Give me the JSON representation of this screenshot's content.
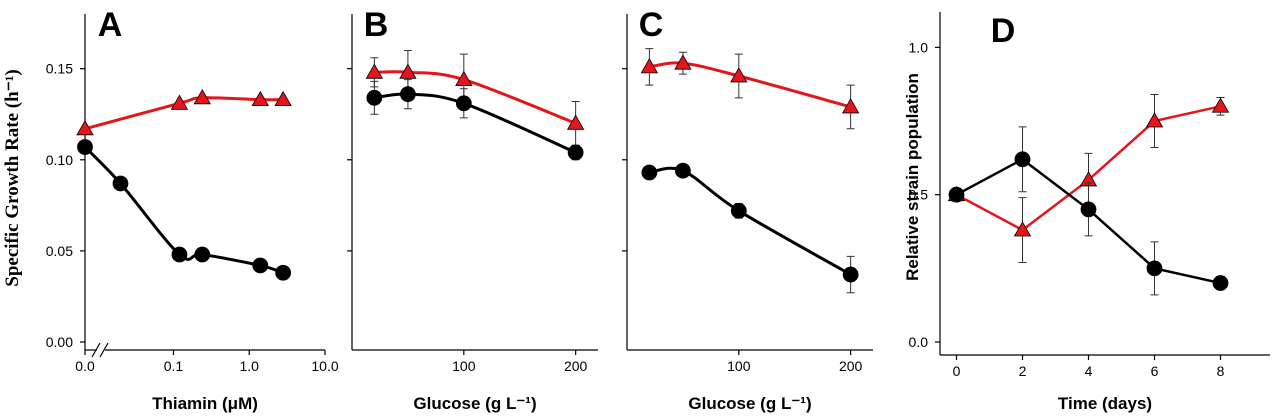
{
  "chart_data": [
    {
      "type": "scatter",
      "panel_label": "A",
      "ylabel": "Specific Growth Rate (h⁻¹)",
      "xlabel": "Thiamin (μM)",
      "xscale": "log",
      "axis_break": true,
      "fit_curve": true,
      "show_ytick_labels": true,
      "xlim": [
        0.0068,
        10
      ],
      "ylim": [
        0,
        0.18
      ],
      "xticks": [
        {
          "value": 0,
          "label": "0.0"
        },
        {
          "value": 0.1,
          "label": "0.1"
        },
        {
          "value": 1,
          "label": "1.0"
        },
        {
          "value": 10,
          "label": "10.0"
        }
      ],
      "yticks": [
        {
          "value": 0,
          "label": "0.00"
        },
        {
          "value": 0.05,
          "label": "0.05"
        },
        {
          "value": 0.1,
          "label": "0.10"
        },
        {
          "value": 0.15,
          "label": "0.15"
        }
      ],
      "series": [
        {
          "color": "#e3161c",
          "marker": "triangle",
          "x": [
            0,
            0.12,
            0.24,
            1.4,
            2.8
          ],
          "values": [
            0.117,
            0.131,
            0.134,
            0.133,
            0.133
          ]
        },
        {
          "color": "#000000",
          "marker": "circle",
          "x": [
            0,
            0.02,
            0.12,
            0.24,
            1.4,
            2.8
          ],
          "values": [
            0.107,
            0.087,
            0.048,
            0.048,
            0.042,
            0.038
          ]
        }
      ]
    },
    {
      "type": "scatter",
      "panel_label": "B",
      "xlabel": "Glucose (g L⁻¹)",
      "fit_curve": true,
      "show_ytick_labels": false,
      "xlim": [
        0,
        220
      ],
      "ylim": [
        0,
        0.18
      ],
      "xticks": [
        100,
        200
      ],
      "yticks": [
        0.05,
        0.1,
        0.15
      ],
      "x": [
        20,
        50,
        100,
        200
      ],
      "series": [
        {
          "color": "#e3161c",
          "marker": "triangle",
          "values": [
            0.148,
            0.148,
            0.144,
            0.12
          ],
          "errors": [
            0.008,
            0.012,
            0.014,
            0.012
          ]
        },
        {
          "color": "#000000",
          "marker": "circle",
          "values": [
            0.134,
            0.136,
            0.131,
            0.104
          ],
          "errors": [
            0.009,
            0.008,
            0.008,
            0.004
          ]
        }
      ]
    },
    {
      "type": "scatter",
      "panel_label": "C",
      "xlabel": "Glucose (g L⁻¹)",
      "fit_curve": true,
      "show_ytick_labels": false,
      "xlim": [
        0,
        220
      ],
      "ylim": [
        0,
        0.18
      ],
      "xticks": [
        100,
        200
      ],
      "yticks": [
        0.05,
        0.1,
        0.15
      ],
      "x": [
        20,
        50,
        100,
        200
      ],
      "series": [
        {
          "color": "#e3161c",
          "marker": "triangle",
          "values": [
            0.151,
            0.153,
            0.146,
            0.129
          ],
          "errors": [
            0.01,
            0.006,
            0.012,
            0.012
          ]
        },
        {
          "color": "#000000",
          "marker": "circle",
          "values": [
            0.093,
            0.094,
            0.072,
            0.037
          ],
          "errors": [
            0.002,
            0.003,
            0.004,
            0.01
          ]
        }
      ]
    },
    {
      "type": "line",
      "panel_label": "D",
      "ylabel": "Relative strain population",
      "xlabel": "Time (days)",
      "show_ytick_labels": true,
      "xlim": [
        -0.5,
        9.5
      ],
      "ylim": [
        0,
        1.12
      ],
      "xticks": [
        0,
        2,
        4,
        6,
        8
      ],
      "yticks": [
        {
          "value": 0,
          "label": "0.0"
        },
        {
          "value": 0.5,
          "label": "0.5"
        },
        {
          "value": 1,
          "label": "1.0"
        }
      ],
      "x": [
        0,
        2,
        4,
        6,
        8
      ],
      "series": [
        {
          "color": "#e3161c",
          "marker": "triangle",
          "values": [
            0.5,
            0.38,
            0.55,
            0.75,
            0.8
          ],
          "errors": [
            0,
            0.11,
            0.09,
            0.09,
            0.03
          ]
        },
        {
          "color": "#000000",
          "marker": "circle",
          "values": [
            0.5,
            0.62,
            0.45,
            0.25,
            0.2
          ],
          "errors": [
            0.01,
            0.11,
            0.09,
            0.09,
            0.02
          ]
        }
      ]
    }
  ]
}
